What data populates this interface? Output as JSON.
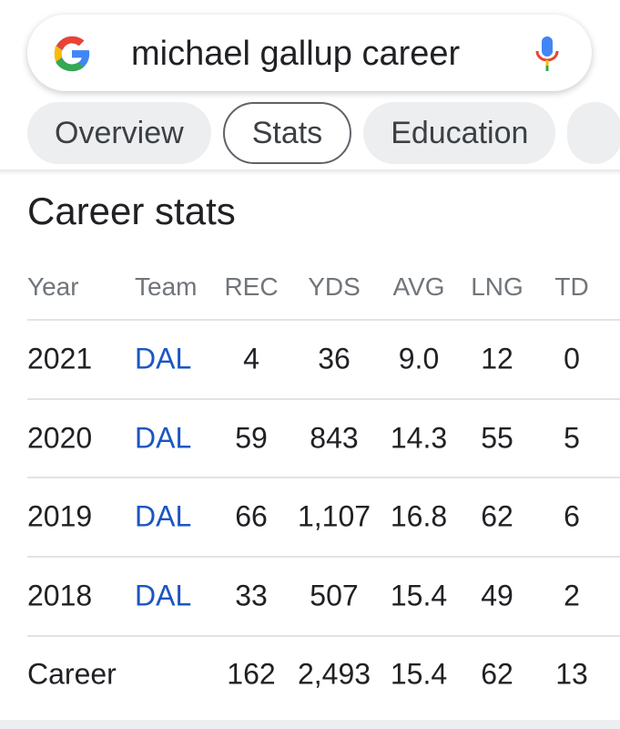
{
  "search": {
    "query": "michael gallup career"
  },
  "tabs": [
    "Overview",
    "Stats",
    "Education"
  ],
  "section": {
    "title": "Career stats"
  },
  "table": {
    "columns": [
      "Year",
      "Team",
      "REC",
      "YDS",
      "AVG",
      "LNG",
      "TD"
    ],
    "rows": [
      [
        "2021",
        "DAL",
        "4",
        "36",
        "9.0",
        "12",
        "0"
      ],
      [
        "2020",
        "DAL",
        "59",
        "843",
        "14.3",
        "55",
        "5"
      ],
      [
        "2019",
        "DAL",
        "66",
        "1,107",
        "16.8",
        "62",
        "6"
      ],
      [
        "2018",
        "DAL",
        "33",
        "507",
        "15.4",
        "49",
        "2"
      ],
      [
        "Career",
        "",
        "162",
        "2,493",
        "15.4",
        "62",
        "13"
      ]
    ]
  }
}
